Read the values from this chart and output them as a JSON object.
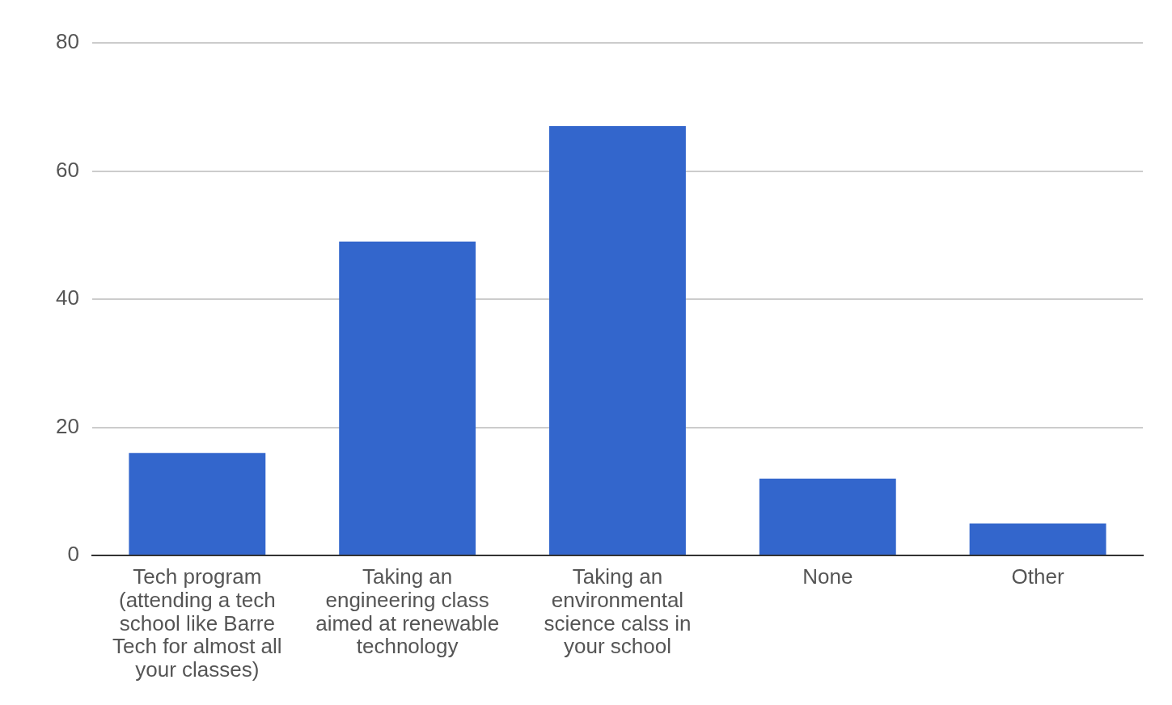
{
  "chart_data": {
    "type": "bar",
    "categories": [
      "Tech program (attending a tech school like Barre Tech for almost all your classes)",
      "Taking an engineering class aimed at renewable technology",
      "Taking an environmental science calss in your school",
      "None",
      "Other"
    ],
    "values": [
      16,
      49,
      67,
      12,
      5
    ],
    "color": "#3366cc",
    "ylim": [
      0,
      80
    ],
    "yticks": [
      0,
      20,
      40,
      60,
      80
    ],
    "grid": "y",
    "legend": false
  }
}
